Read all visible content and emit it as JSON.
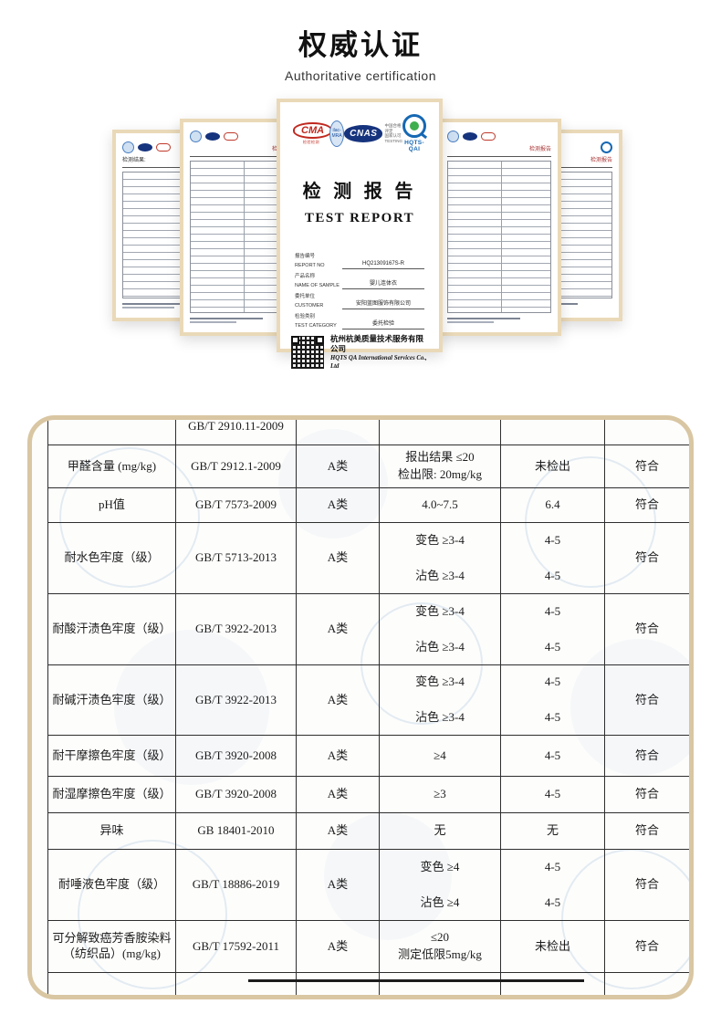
{
  "page": {
    "title_cn": "权威认证",
    "title_en": "Authoritative certification"
  },
  "certificates": {
    "center": {
      "logos": {
        "cma": "CMA",
        "cma_sub": "检验检测",
        "ilac": "ilac-MRA",
        "cnas": "CNAS",
        "cnas_side": [
          "中国合格评定",
          "国家认可",
          "TESTING"
        ],
        "hqts": "HQTS-QAI"
      },
      "title_cn": "检 测 报 告",
      "title_en": "TEST REPORT",
      "fields": [
        {
          "label_cn": "报告编号",
          "label_en": "REPORT NO",
          "value": "HQ21309167S-R"
        },
        {
          "label_cn": "产品名称",
          "label_en": "NAME OF SAMPLE",
          "value": "婴儿连体衣"
        },
        {
          "label_cn": "委托单位",
          "label_en": "CUSTOMER",
          "value": "安阳蓝图服饰有限公司"
        },
        {
          "label_cn": "检验类别",
          "label_en": "TEST CATEGORY",
          "value": "委托检验"
        }
      ],
      "company_cn": "杭州杭美质量技术服务有限公司",
      "company_en": "HQTS QA International Services Co., Ltd"
    },
    "side": [
      {
        "header": "检测结果:"
      },
      {
        "header": "检测报告"
      },
      {
        "header": "检测报告"
      },
      {
        "header": "检测报告"
      }
    ]
  },
  "table": {
    "rows": [
      {
        "item": "",
        "standard": "GB/T 2910.11-2009",
        "category": "",
        "requirement": [],
        "result": [],
        "conclusion": ""
      },
      {
        "item": "甲醛含量 (mg/kg)",
        "standard": "GB/T 2912.1-2009",
        "category": "A类",
        "requirement": [
          "报出结果 ≤20",
          "检出限: 20mg/kg"
        ],
        "result": [
          "未检出"
        ],
        "conclusion": "符合"
      },
      {
        "item": "pH值",
        "standard": "GB/T 7573-2009",
        "category": "A类",
        "requirement": [
          "4.0~7.5"
        ],
        "result": [
          "6.4"
        ],
        "conclusion": "符合"
      },
      {
        "item": "耐水色牢度（级）",
        "standard": "GB/T 5713-2013",
        "category": "A类",
        "requirement": [
          "变色 ≥3-4",
          "沾色 ≥3-4"
        ],
        "result": [
          "4-5",
          "4-5"
        ],
        "conclusion": "符合"
      },
      {
        "item": "耐酸汗渍色牢度（级）",
        "standard": "GB/T 3922-2013",
        "category": "A类",
        "requirement": [
          "变色 ≥3-4",
          "沾色 ≥3-4"
        ],
        "result": [
          "4-5",
          "4-5"
        ],
        "conclusion": "符合"
      },
      {
        "item": "耐碱汗渍色牢度（级）",
        "standard": "GB/T 3922-2013",
        "category": "A类",
        "requirement": [
          "变色 ≥3-4",
          "沾色 ≥3-4"
        ],
        "result": [
          "4-5",
          "4-5"
        ],
        "conclusion": "符合"
      },
      {
        "item": "耐干摩擦色牢度（级）",
        "standard": "GB/T 3920-2008",
        "category": "A类",
        "requirement": [
          "≥4"
        ],
        "result": [
          "4-5"
        ],
        "conclusion": "符合"
      },
      {
        "item": "耐湿摩擦色牢度（级）",
        "standard": "GB/T 3920-2008",
        "category": "A类",
        "requirement": [
          "≥3"
        ],
        "result": [
          "4-5"
        ],
        "conclusion": "符合"
      },
      {
        "item": "异味",
        "standard": "GB 18401-2010",
        "category": "A类",
        "requirement": [
          "无"
        ],
        "result": [
          "无"
        ],
        "conclusion": "符合"
      },
      {
        "item": "耐唾液色牢度（级）",
        "standard": "GB/T 18886-2019",
        "category": "A类",
        "requirement": [
          "变色 ≥4",
          "沾色 ≥4"
        ],
        "result": [
          "4-5",
          "4-5"
        ],
        "conclusion": "符合"
      },
      {
        "item": "可分解致癌芳香胺染料（纺织品）(mg/kg)",
        "standard": "GB/T 17592-2011",
        "category": "A类",
        "requirement": [
          "≤20",
          "测定低限5mg/kg"
        ],
        "result": [
          "未检出"
        ],
        "conclusion": "符合"
      }
    ]
  },
  "colors": {
    "frame_tan": "#d9c6a2",
    "cma_red": "#c0281e",
    "cnas_blue": "#16337e",
    "hqts_blue": "#1668b3",
    "watermark_blue": "#5f8cbe"
  }
}
